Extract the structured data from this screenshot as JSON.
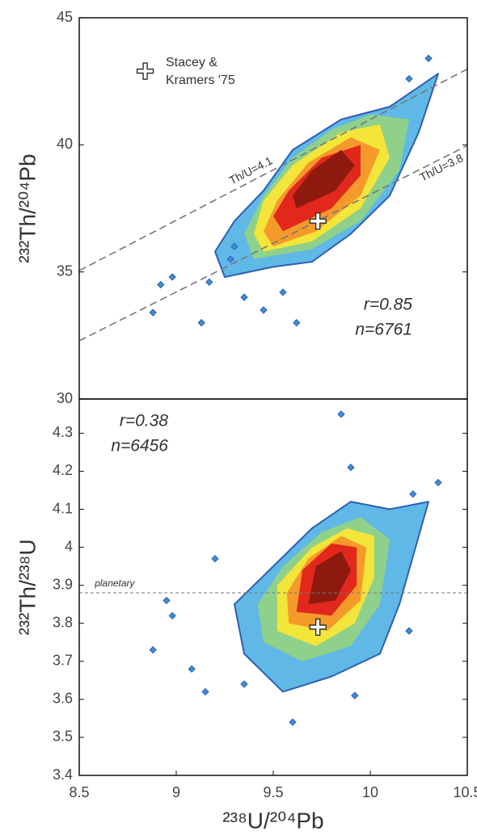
{
  "chart_data": [
    {
      "type": "contour",
      "y_label": "²³²Th/²⁰⁴Pb",
      "xlim": [
        8.5,
        10.5
      ],
      "ylim": [
        30,
        45
      ],
      "yticks": [
        30,
        35,
        40,
        45
      ],
      "annotations": [
        "r=0.85",
        "n=6761"
      ],
      "legend": [
        "Stacey &",
        "Kramers '75"
      ],
      "markers": [
        {
          "x": 8.84,
          "y": 42.9
        },
        {
          "x": 9.73,
          "y": 37.0
        }
      ],
      "ref_lines": [
        {
          "label": "Th/U=4.1",
          "x": [
            8.5,
            10.5
          ],
          "y": [
            35.05,
            42.98
          ]
        },
        {
          "label": "Th/U=3.8",
          "x": [
            8.5,
            10.5
          ],
          "y": [
            32.29,
            39.97
          ]
        }
      ],
      "contours": [
        {
          "color": "#5fb8e6",
          "x": [
            9.25,
            9.5,
            9.7,
            9.9,
            10.1,
            10.25,
            10.35,
            10.1,
            9.85,
            9.6,
            9.45,
            9.3,
            9.2
          ],
          "y": [
            34.8,
            35.2,
            35.4,
            36.5,
            38.0,
            40.5,
            42.8,
            41.5,
            41.0,
            39.8,
            38.2,
            37.0,
            35.8
          ]
        },
        {
          "color": "#8fd18a",
          "x": [
            9.4,
            9.7,
            9.95,
            10.15,
            10.2,
            10.0,
            9.8,
            9.6,
            9.45,
            9.35
          ],
          "y": [
            35.5,
            35.9,
            37.0,
            39.0,
            41.0,
            41.2,
            40.6,
            39.5,
            38.0,
            36.5
          ]
        },
        {
          "color": "#f3e53a",
          "x": [
            9.45,
            9.7,
            9.95,
            10.1,
            10.05,
            9.85,
            9.6,
            9.45,
            9.4
          ],
          "y": [
            35.8,
            36.2,
            37.5,
            39.5,
            40.8,
            40.5,
            39.2,
            37.8,
            36.5
          ]
        },
        {
          "color": "#f59a2a",
          "x": [
            9.5,
            9.72,
            9.95,
            10.05,
            9.9,
            9.68,
            9.52,
            9.45
          ],
          "y": [
            36.0,
            36.6,
            38.0,
            39.8,
            40.3,
            39.3,
            37.8,
            36.6
          ]
        },
        {
          "color": "#e2281c",
          "x": [
            9.55,
            9.8,
            9.95,
            9.95,
            9.75,
            9.58,
            9.5
          ],
          "y": [
            36.6,
            37.5,
            38.8,
            40.0,
            39.5,
            38.2,
            37.2
          ]
        },
        {
          "color": "#8e1a0f",
          "x": [
            9.62,
            9.82,
            9.92,
            9.85,
            9.7,
            9.6
          ],
          "y": [
            37.5,
            38.2,
            39.2,
            39.8,
            39.0,
            38.0
          ]
        }
      ],
      "points": {
        "color": "#3d8fd6",
        "x": [
          8.88,
          8.92,
          8.98,
          9.13,
          9.17,
          9.35,
          9.45,
          9.62,
          9.55,
          10.3,
          10.2,
          9.28,
          9.3
        ],
        "y": [
          33.4,
          34.5,
          34.8,
          33.0,
          34.6,
          34.0,
          33.5,
          33.0,
          34.2,
          43.4,
          42.6,
          35.5,
          36.0
        ]
      }
    },
    {
      "type": "contour",
      "y_label": "²³²Th/²³⁸U",
      "x_label": "²³⁸U/²⁰⁴Pb",
      "xlim": [
        8.5,
        10.5
      ],
      "xticks": [
        8.5,
        9,
        9.5,
        10,
        10.5
      ],
      "ylim": [
        3.4,
        4.39
      ],
      "yticks": [
        3.4,
        3.5,
        3.6,
        3.7,
        3.8,
        3.9,
        4.0,
        4.1,
        4.2,
        4.3
      ],
      "annotations": [
        "r=0.38",
        "n=6456"
      ],
      "markers": [
        {
          "x": 9.73,
          "y": 3.79
        }
      ],
      "ref_lines": [
        {
          "label": "planetary",
          "x": [
            8.5,
            10.5
          ],
          "y": [
            3.88,
            3.88
          ]
        }
      ],
      "contours": [
        {
          "color": "#5fb8e6",
          "x": [
            9.35,
            9.55,
            9.8,
            10.05,
            10.15,
            10.3,
            10.1,
            9.9,
            9.7,
            9.5,
            9.3
          ],
          "y": [
            3.72,
            3.62,
            3.66,
            3.72,
            3.85,
            4.12,
            4.1,
            4.12,
            4.05,
            3.95,
            3.85
          ]
        },
        {
          "color": "#8fd18a",
          "x": [
            9.45,
            9.65,
            9.9,
            10.05,
            10.1,
            9.95,
            9.75,
            9.55,
            9.42
          ],
          "y": [
            3.75,
            3.7,
            3.74,
            3.85,
            4.02,
            4.08,
            4.04,
            3.95,
            3.85
          ]
        },
        {
          "color": "#f3e53a",
          "x": [
            9.52,
            9.72,
            9.92,
            10.02,
            10.02,
            9.88,
            9.7,
            9.52
          ],
          "y": [
            3.78,
            3.74,
            3.8,
            3.92,
            4.03,
            4.05,
            4.0,
            3.9
          ]
        },
        {
          "color": "#f59a2a",
          "x": [
            9.58,
            9.78,
            9.95,
            9.98,
            9.85,
            9.68,
            9.57
          ],
          "y": [
            3.8,
            3.78,
            3.86,
            4.0,
            4.03,
            3.97,
            3.88
          ]
        },
        {
          "color": "#e2281c",
          "x": [
            9.62,
            9.8,
            9.93,
            9.93,
            9.8,
            9.65
          ],
          "y": [
            3.83,
            3.82,
            3.9,
            4.0,
            4.01,
            3.94
          ]
        },
        {
          "color": "#8e1a0f",
          "x": [
            9.68,
            9.82,
            9.9,
            9.85,
            9.72
          ],
          "y": [
            3.85,
            3.86,
            3.94,
            3.99,
            3.95
          ]
        }
      ],
      "points": {
        "color": "#3d8fd6",
        "x": [
          8.88,
          8.95,
          8.98,
          9.08,
          9.15,
          9.35,
          9.6,
          9.85,
          9.9,
          10.22,
          10.35,
          9.2,
          10.2,
          9.92
        ],
        "y": [
          3.73,
          3.86,
          3.82,
          3.68,
          3.62,
          3.64,
          3.54,
          4.35,
          4.21,
          4.14,
          4.17,
          3.97,
          3.78,
          3.61
        ]
      }
    }
  ]
}
